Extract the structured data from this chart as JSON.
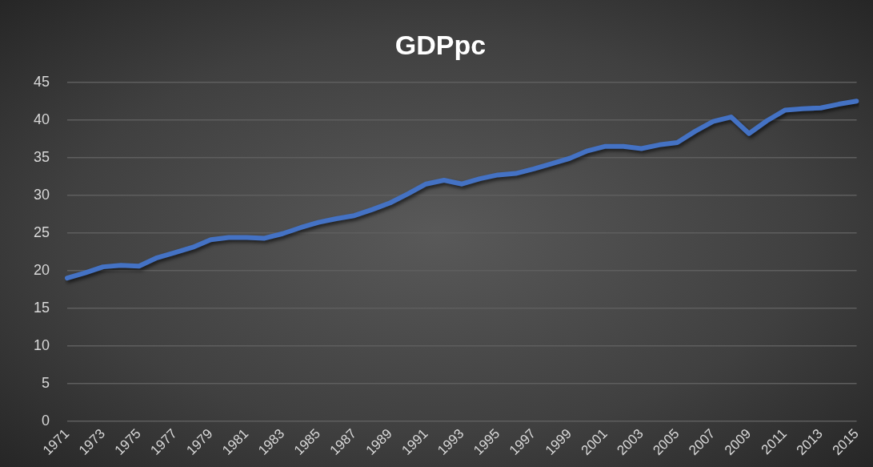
{
  "chart_data": {
    "type": "line",
    "title": "GDPpc",
    "categories": [
      "1971",
      null,
      "1973",
      null,
      "1975",
      null,
      "1977",
      null,
      "1979",
      null,
      "1981",
      null,
      "1983",
      null,
      "1985",
      null,
      "1987",
      null,
      "1989",
      null,
      "1991",
      null,
      "1993",
      null,
      "1995",
      null,
      "1997",
      null,
      "1999",
      null,
      "2001",
      null,
      "2003",
      null,
      "2005",
      null,
      "2007",
      null,
      "2009",
      null,
      "2011",
      null,
      "2013",
      null,
      "2015"
    ],
    "series": [
      {
        "color": "#4472c4",
        "values": [
          19.0,
          19.7,
          20.5,
          20.7,
          20.6,
          21.7,
          22.4,
          23.1,
          24.1,
          24.4,
          24.4,
          24.3,
          24.9,
          25.7,
          26.4,
          26.9,
          27.3,
          28.1,
          29.0,
          30.2,
          31.5,
          32.0,
          31.5,
          32.2,
          32.7,
          32.9,
          33.5,
          34.2,
          34.9,
          35.9,
          36.5,
          36.5,
          36.2,
          36.7,
          37.0,
          38.5,
          39.8,
          40.4,
          38.2,
          39.9,
          41.3,
          41.5,
          41.6,
          42.1,
          42.5
        ]
      }
    ],
    "ylim": [
      0,
      45
    ],
    "yticks": [
      0,
      5,
      10,
      15,
      20,
      25,
      30,
      35,
      40,
      45
    ],
    "grid": "y",
    "legend": false,
    "marker": "none",
    "line_style": "solid"
  }
}
